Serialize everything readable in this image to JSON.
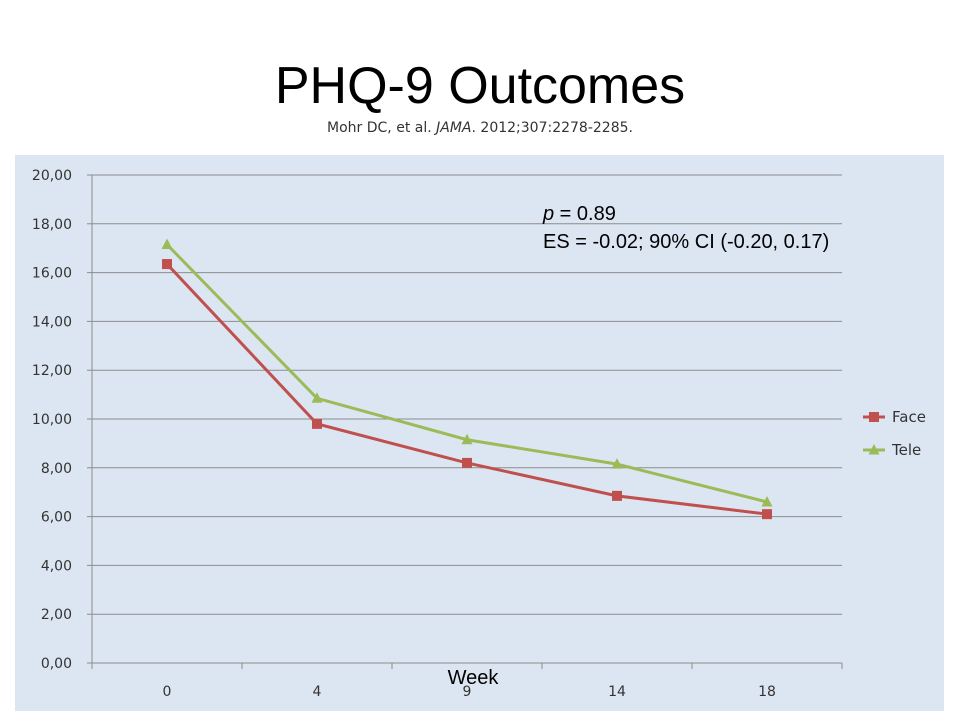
{
  "slide": {
    "title": "PHQ-9 Outcomes",
    "citation_prefix": "Mohr DC, et al. ",
    "citation_journal": "JAMA",
    "citation_suffix": ". 2012;307:2278-2285."
  },
  "chart_data": {
    "type": "line",
    "categories": [
      "0",
      "4",
      "9",
      "14",
      "18"
    ],
    "series": [
      {
        "name": "Face",
        "values": [
          16.35,
          9.8,
          8.2,
          6.85,
          6.1
        ],
        "color": "#c0504d",
        "marker": "square"
      },
      {
        "name": "Tele",
        "values": [
          17.15,
          10.85,
          9.15,
          8.15,
          6.6
        ],
        "color": "#9bbb59",
        "marker": "triangle"
      }
    ],
    "ylim": [
      0,
      20
    ],
    "yticks": [
      "0,00",
      "2,00",
      "4,00",
      "6,00",
      "8,00",
      "10,00",
      "12,00",
      "14,00",
      "16,00",
      "18,00",
      "20,00"
    ],
    "xlabel": "Week",
    "ylabel": "",
    "grid": true,
    "legend_position": "right",
    "annotation": {
      "p_label": "p",
      "p_value": " = 0.89",
      "es_line": "ES = -0.02; 90% CI (-0.20, 0.17)"
    }
  }
}
